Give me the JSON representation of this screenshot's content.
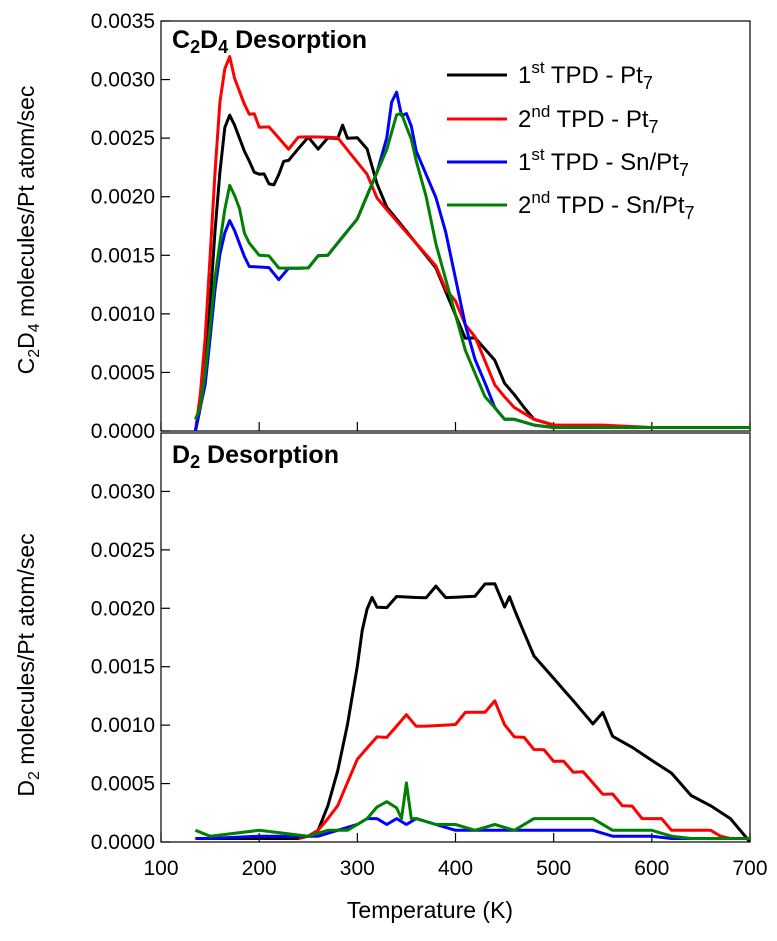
{
  "chart_data": [
    {
      "type": "line",
      "title": "C2D4 Desorption",
      "title_parts": {
        "a": "C",
        "a_sub": "2",
        "b": "D",
        "b_sub": "4",
        "rest": " Desorption"
      },
      "xlabel": "Temperature (K)",
      "ylabel_parts": {
        "a": "C",
        "a_sub": "2",
        "b": "D",
        "b_sub": "4",
        "rest": " molecules/Pt atom/sec"
      },
      "xlim": [
        100,
        700
      ],
      "ylim": [
        0,
        0.0035
      ],
      "yticks": [
        "0.0000",
        "0.0005",
        "0.0010",
        "0.0015",
        "0.0020",
        "0.0025",
        "0.0030",
        "0.0035"
      ],
      "grid": false,
      "legend_position": "top-right",
      "series": [
        {
          "name": "1st TPD - Pt7",
          "legend": {
            "pre": "1",
            "sup": "st",
            "mid": " TPD - Pt",
            "sub": "7"
          },
          "color": "#000000",
          "x": [
            135,
            140,
            145,
            150,
            155,
            160,
            165,
            170,
            175,
            180,
            185,
            190,
            195,
            200,
            205,
            210,
            215,
            220,
            225,
            230,
            240,
            250,
            260,
            270,
            280,
            285,
            290,
            300,
            310,
            320,
            330,
            340,
            350,
            360,
            370,
            380,
            390,
            400,
            410,
            420,
            430,
            440,
            450,
            460,
            470,
            480,
            500,
            550,
            600,
            650,
            700
          ],
          "y": [
            0.0,
            0.0002,
            0.0005,
            0.0011,
            0.0017,
            0.0022,
            0.0026,
            0.0027,
            0.0026,
            0.0025,
            0.0024,
            0.0023,
            0.0022,
            0.0022,
            0.0022,
            0.0021,
            0.0021,
            0.0022,
            0.0023,
            0.0023,
            0.0024,
            0.0025,
            0.0024,
            0.0025,
            0.0025,
            0.0026,
            0.0025,
            0.0025,
            0.0024,
            0.0021,
            0.0019,
            0.0018,
            0.0017,
            0.0016,
            0.0015,
            0.0014,
            0.0012,
            0.001,
            0.0008,
            0.0008,
            0.0007,
            0.0006,
            0.0004,
            0.0003,
            0.0002,
            0.0001,
            5e-05,
            3e-05,
            3e-05,
            3e-05,
            3e-05
          ]
        },
        {
          "name": "2nd TPD - Pt7",
          "legend": {
            "pre": "2",
            "sup": "nd",
            "mid": " TPD - Pt",
            "sub": "7"
          },
          "color": "#ff0000",
          "x": [
            135,
            140,
            145,
            150,
            155,
            160,
            165,
            170,
            175,
            180,
            185,
            190,
            195,
            200,
            210,
            220,
            230,
            240,
            250,
            260,
            270,
            280,
            290,
            300,
            310,
            320,
            330,
            340,
            350,
            360,
            370,
            380,
            390,
            400,
            410,
            420,
            430,
            440,
            450,
            460,
            470,
            480,
            500,
            550,
            600,
            650,
            700
          ],
          "y": [
            0.0,
            0.0003,
            0.0008,
            0.0015,
            0.0022,
            0.0028,
            0.0031,
            0.0032,
            0.003,
            0.0029,
            0.0028,
            0.0027,
            0.0027,
            0.0026,
            0.0026,
            0.0025,
            0.0024,
            0.0025,
            0.0025,
            0.0025,
            0.0025,
            0.0025,
            0.0024,
            0.0023,
            0.0022,
            0.002,
            0.0019,
            0.0018,
            0.0017,
            0.0016,
            0.0015,
            0.0014,
            0.0012,
            0.0011,
            0.0009,
            0.0008,
            0.0006,
            0.0004,
            0.0003,
            0.0002,
            0.00015,
            0.0001,
            5e-05,
            5e-05,
            3e-05,
            3e-05,
            3e-05
          ]
        },
        {
          "name": "1st TPD - Sn/Pt7",
          "legend": {
            "pre": "1",
            "sup": "st",
            "mid": " TPD - Sn/Pt",
            "sub": "7"
          },
          "color": "#0000ff",
          "x": [
            135,
            140,
            145,
            150,
            155,
            160,
            165,
            170,
            175,
            180,
            185,
            190,
            200,
            210,
            220,
            230,
            240,
            250,
            260,
            270,
            280,
            290,
            300,
            310,
            320,
            330,
            335,
            340,
            345,
            350,
            355,
            360,
            370,
            380,
            390,
            400,
            410,
            420,
            430,
            440,
            450,
            460,
            480,
            500,
            550,
            600,
            650,
            700
          ],
          "y": [
            0.0,
            0.0002,
            0.0004,
            0.0008,
            0.0012,
            0.0015,
            0.0017,
            0.0018,
            0.0017,
            0.0016,
            0.0015,
            0.0014,
            0.0014,
            0.0014,
            0.0013,
            0.0014,
            0.0014,
            0.0014,
            0.0015,
            0.0015,
            0.0016,
            0.0017,
            0.0018,
            0.002,
            0.0022,
            0.0025,
            0.0028,
            0.0029,
            0.0027,
            0.0027,
            0.0026,
            0.0024,
            0.0022,
            0.002,
            0.0017,
            0.0013,
            0.0009,
            0.0006,
            0.0004,
            0.0002,
            0.0001,
            0.0001,
            5e-05,
            3e-05,
            3e-05,
            3e-05,
            3e-05,
            3e-05
          ]
        },
        {
          "name": "2nd TPD - Sn/Pt7",
          "legend": {
            "pre": "2",
            "sup": "nd",
            "mid": " TPD - Sn/Pt",
            "sub": "7"
          },
          "color": "#008000",
          "x": [
            135,
            140,
            145,
            150,
            155,
            160,
            165,
            170,
            175,
            180,
            185,
            190,
            200,
            210,
            220,
            230,
            240,
            250,
            260,
            270,
            280,
            290,
            300,
            310,
            320,
            330,
            340,
            345,
            350,
            355,
            360,
            370,
            380,
            390,
            400,
            410,
            420,
            430,
            440,
            450,
            460,
            480,
            500,
            550,
            600,
            650,
            700
          ],
          "y": [
            0.0001,
            0.0002,
            0.0005,
            0.0009,
            0.0013,
            0.0016,
            0.0019,
            0.0021,
            0.002,
            0.0019,
            0.0017,
            0.0016,
            0.0015,
            0.0015,
            0.0014,
            0.0014,
            0.0014,
            0.0014,
            0.0015,
            0.0015,
            0.0016,
            0.0017,
            0.0018,
            0.002,
            0.0022,
            0.0024,
            0.0027,
            0.0027,
            0.0026,
            0.0025,
            0.0023,
            0.002,
            0.0016,
            0.0013,
            0.001,
            0.0007,
            0.0005,
            0.0003,
            0.0002,
            0.0001,
            0.0001,
            5e-05,
            3e-05,
            3e-05,
            3e-05,
            3e-05,
            3e-05
          ]
        }
      ]
    },
    {
      "type": "line",
      "title": "D2 Desorption",
      "title_parts": {
        "a": "D",
        "a_sub": "2",
        "rest": " Desorption"
      },
      "xlabel": "Temperature (K)",
      "ylabel_parts": {
        "a": "D",
        "a_sub": "2",
        "rest": " molecules/Pt atom/sec"
      },
      "xlim": [
        100,
        700
      ],
      "ylim": [
        0,
        0.0035
      ],
      "xticks": [
        "100",
        "200",
        "300",
        "400",
        "500",
        "600",
        "700"
      ],
      "yticks": [
        "0.0000",
        "0.0005",
        "0.0010",
        "0.0015",
        "0.0020",
        "0.0025",
        "0.0030"
      ],
      "grid": false,
      "series": [
        {
          "name": "1st TPD - Pt7",
          "color": "#000000",
          "x": [
            135,
            150,
            200,
            240,
            250,
            260,
            270,
            280,
            290,
            300,
            305,
            310,
            315,
            320,
            330,
            340,
            350,
            360,
            370,
            380,
            390,
            400,
            410,
            420,
            430,
            440,
            450,
            455,
            460,
            470,
            480,
            490,
            500,
            510,
            520,
            530,
            540,
            550,
            560,
            580,
            600,
            620,
            640,
            660,
            680,
            700
          ],
          "y": [
            3e-05,
            3e-05,
            3e-05,
            3e-05,
            5e-05,
            0.0001,
            0.0003,
            0.0006,
            0.001,
            0.0015,
            0.0018,
            0.002,
            0.0021,
            0.002,
            0.002,
            0.0021,
            0.0021,
            0.0021,
            0.0021,
            0.0022,
            0.0021,
            0.0021,
            0.0021,
            0.0021,
            0.0022,
            0.0022,
            0.002,
            0.0021,
            0.002,
            0.0018,
            0.0016,
            0.0015,
            0.0014,
            0.0013,
            0.0012,
            0.0011,
            0.001,
            0.0011,
            0.0009,
            0.0008,
            0.0007,
            0.0006,
            0.0004,
            0.0003,
            0.0002,
            0.0
          ]
        },
        {
          "name": "2nd TPD - Pt7",
          "color": "#ff0000",
          "x": [
            240,
            250,
            260,
            270,
            280,
            290,
            300,
            310,
            320,
            330,
            340,
            350,
            360,
            370,
            380,
            390,
            400,
            410,
            420,
            430,
            440,
            450,
            460,
            470,
            480,
            490,
            500,
            510,
            520,
            530,
            540,
            550,
            560,
            570,
            580,
            590,
            600,
            610,
            620,
            630,
            640,
            650,
            660,
            670,
            680
          ],
          "y": [
            3e-05,
            5e-05,
            0.0001,
            0.0002,
            0.0003,
            0.0005,
            0.0007,
            0.0008,
            0.0009,
            0.0009,
            0.001,
            0.0011,
            0.001,
            0.001,
            0.001,
            0.001,
            0.001,
            0.0011,
            0.0011,
            0.0011,
            0.0012,
            0.001,
            0.0009,
            0.0009,
            0.0008,
            0.0008,
            0.0007,
            0.0007,
            0.0006,
            0.0006,
            0.0005,
            0.0004,
            0.0004,
            0.0003,
            0.0003,
            0.0002,
            0.0002,
            0.0002,
            0.0001,
            0.0001,
            0.0001,
            0.0001,
            0.0001,
            5e-05,
            3e-05
          ]
        },
        {
          "name": "1st TPD - Sn/Pt7",
          "color": "#0000ff",
          "x": [
            135,
            150,
            200,
            250,
            260,
            280,
            300,
            310,
            320,
            330,
            340,
            350,
            360,
            380,
            400,
            420,
            440,
            460,
            480,
            500,
            520,
            540,
            560,
            580,
            600,
            620,
            640
          ],
          "y": [
            3e-05,
            3e-05,
            5e-05,
            5e-05,
            5e-05,
            0.0001,
            0.00015,
            0.0002,
            0.0002,
            0.00015,
            0.0002,
            0.00015,
            0.0002,
            0.00015,
            0.0001,
            0.0001,
            0.0001,
            0.0001,
            0.0001,
            0.0001,
            0.0001,
            0.0001,
            5e-05,
            5e-05,
            5e-05,
            3e-05,
            3e-05
          ]
        },
        {
          "name": "2nd TPD - Sn/Pt7",
          "color": "#008000",
          "x": [
            135,
            150,
            200,
            250,
            270,
            290,
            300,
            310,
            320,
            330,
            340,
            345,
            350,
            355,
            360,
            380,
            400,
            420,
            440,
            460,
            480,
            500,
            520,
            540,
            560,
            580,
            600,
            620,
            640,
            660,
            680,
            700
          ],
          "y": [
            0.0001,
            5e-05,
            0.0001,
            5e-05,
            0.0001,
            0.0001,
            0.00015,
            0.0002,
            0.0003,
            0.00035,
            0.0003,
            0.0002,
            0.0005,
            0.0002,
            0.0002,
            0.00015,
            0.00015,
            0.0001,
            0.00015,
            0.0001,
            0.0002,
            0.0002,
            0.0002,
            0.0002,
            0.0001,
            0.0001,
            0.0001,
            5e-05,
            3e-05,
            3e-05,
            3e-05,
            3e-05
          ]
        }
      ]
    }
  ]
}
